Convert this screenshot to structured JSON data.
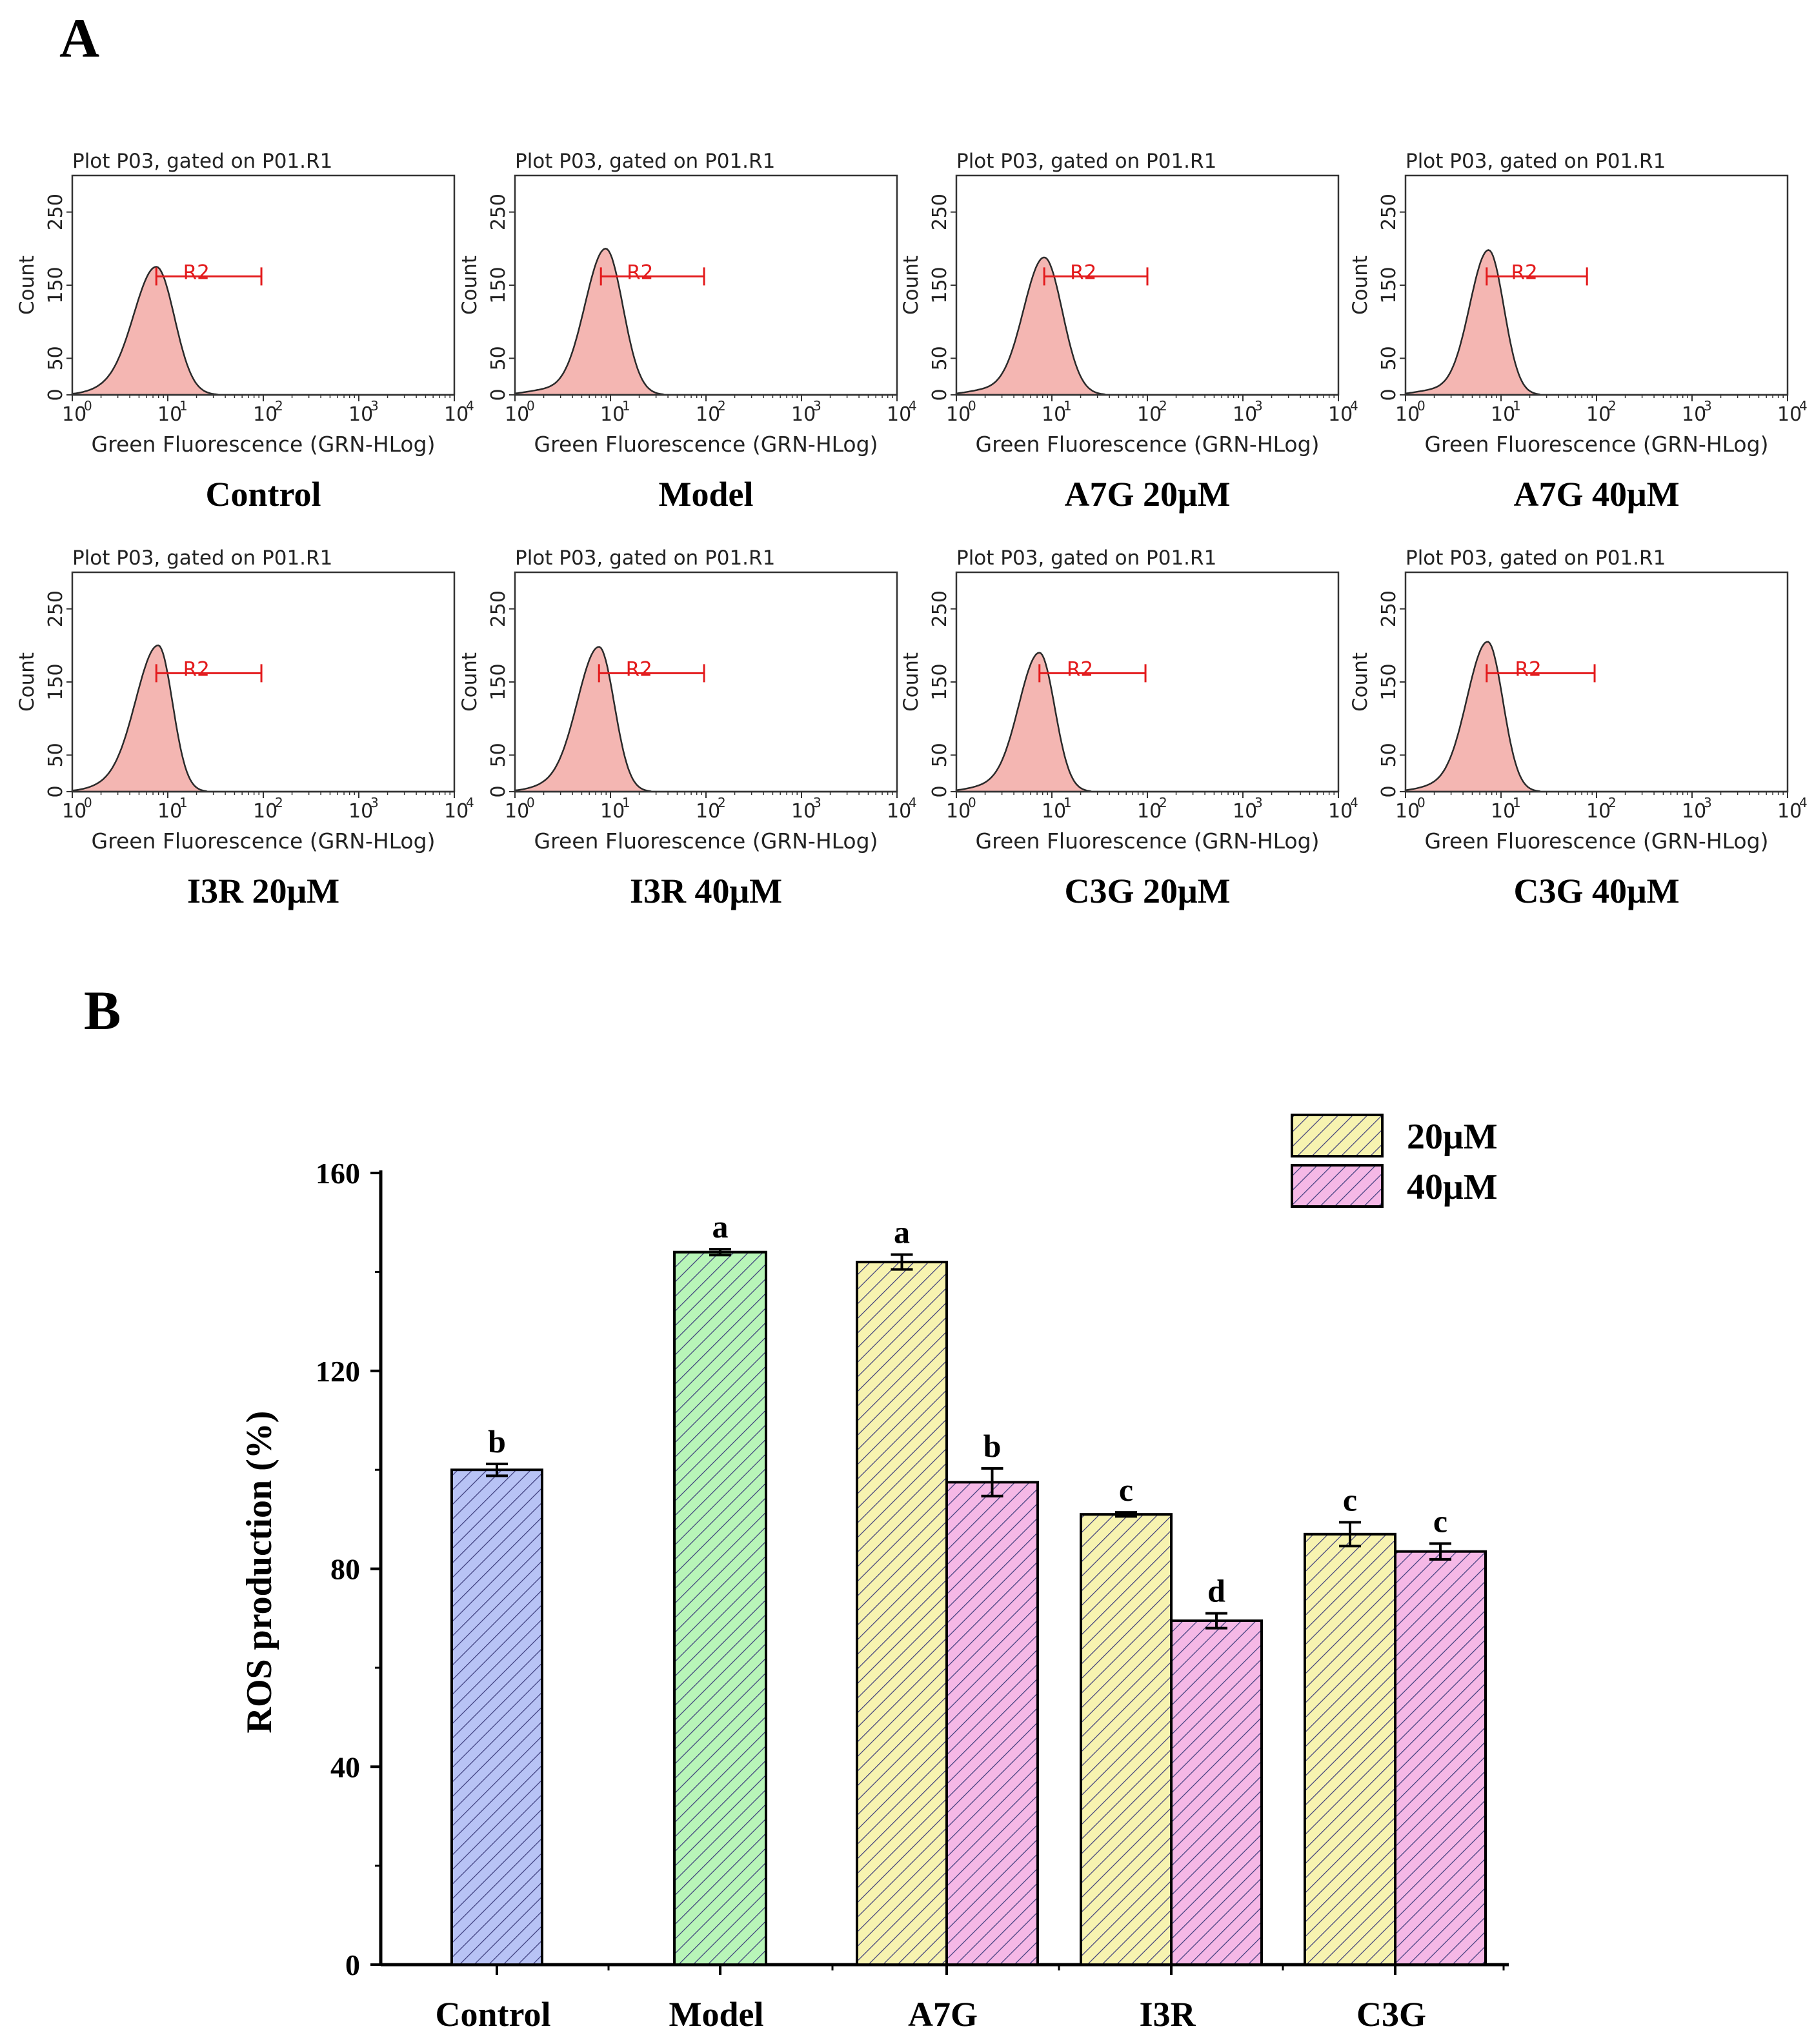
{
  "panels": {
    "a_label": "A",
    "b_label": "B"
  },
  "flow": {
    "plot_header": "Plot P03, gated on P01.R1",
    "x_axis_label": "Green Fluorescence (GRN-HLog)",
    "y_axis_label": "Count",
    "x_tick_labels": [
      "10",
      "10",
      "10",
      "10",
      "10"
    ],
    "x_tick_exponents": [
      "0",
      "1",
      "2",
      "3",
      "4"
    ],
    "y_tick_labels": [
      "0",
      "50",
      "150",
      "250"
    ],
    "gate_label": "R2",
    "colors": {
      "fill": "#f4b6b2",
      "edge": "#2a2a2a",
      "gate": "#e31a1c"
    }
  },
  "chart_data": [
    {
      "type": "histogram",
      "panel": "A",
      "x_scale": "log10",
      "xlim": [
        0,
        4
      ],
      "ylim": [
        0,
        300
      ],
      "x_ticks": [
        0,
        1,
        2,
        3,
        4
      ],
      "y_ticks": [
        0,
        50,
        150,
        250
      ],
      "histograms": [
        {
          "caption": "Control",
          "peak_log": 0.88,
          "peak_count": 175,
          "left_width": 0.24,
          "right_width": 0.19,
          "left_shoulder": 0.35,
          "gate": [
            0.88,
            1.98
          ]
        },
        {
          "caption": "Model",
          "peak_log": 0.95,
          "peak_count": 200,
          "left_width": 0.22,
          "right_width": 0.18,
          "left_shoulder": 0.3,
          "gate": [
            0.9,
            1.98
          ]
        },
        {
          "caption": "A7G 20μM",
          "peak_log": 0.92,
          "peak_count": 188,
          "left_width": 0.22,
          "right_width": 0.19,
          "left_shoulder": 0.3,
          "gate": [
            0.92,
            2.0
          ]
        },
        {
          "caption": "A7G  40μM",
          "peak_log": 0.87,
          "peak_count": 198,
          "left_width": 0.2,
          "right_width": 0.16,
          "left_shoulder": 0.3,
          "gate": [
            0.85,
            1.9
          ]
        },
        {
          "caption": "I3R 20μM",
          "peak_log": 0.9,
          "peak_count": 200,
          "left_width": 0.24,
          "right_width": 0.15,
          "left_shoulder": 0.35,
          "gate": [
            0.88,
            1.98
          ]
        },
        {
          "caption": "I3R 40μM",
          "peak_log": 0.88,
          "peak_count": 198,
          "left_width": 0.23,
          "right_width": 0.16,
          "left_shoulder": 0.33,
          "gate": [
            0.88,
            1.98
          ]
        },
        {
          "caption": "C3G 20μM",
          "peak_log": 0.87,
          "peak_count": 190,
          "left_width": 0.22,
          "right_width": 0.16,
          "left_shoulder": 0.3,
          "gate": [
            0.87,
            1.98
          ]
        },
        {
          "caption": "C3G 40μM",
          "peak_log": 0.86,
          "peak_count": 205,
          "left_width": 0.22,
          "right_width": 0.16,
          "left_shoulder": 0.3,
          "gate": [
            0.85,
            1.98
          ]
        }
      ]
    },
    {
      "type": "bar",
      "panel": "B",
      "title": "",
      "xlabel": "",
      "ylabel": "ROS production (%)",
      "ylim": [
        0,
        160
      ],
      "y_ticks": [
        0,
        40,
        80,
        120,
        160
      ],
      "groups": [
        "Control",
        "Model",
        "A7G",
        "I3R",
        "C3G"
      ],
      "legend": [
        {
          "name": "20μM",
          "color": "#f7f3b0"
        },
        {
          "name": "40μM",
          "color": "#f5b8e6"
        }
      ],
      "legend_position": "top-right",
      "bars": [
        {
          "group": "Control",
          "series": "single",
          "value": 100,
          "error": 1.2,
          "letter": "b",
          "color": "#b8c3f5"
        },
        {
          "group": "Model",
          "series": "single",
          "value": 144,
          "error": 0.6,
          "letter": "a",
          "color": "#b8f5b8"
        },
        {
          "group": "A7G",
          "series": "20μM",
          "value": 142,
          "error": 1.5,
          "letter": "a",
          "color": "#f7f3b0"
        },
        {
          "group": "A7G",
          "series": "40μM",
          "value": 97.5,
          "error": 2.8,
          "letter": "b",
          "color": "#f5b8e6"
        },
        {
          "group": "I3R",
          "series": "20μM",
          "value": 91,
          "error": 0.4,
          "letter": "c",
          "color": "#f7f3b0"
        },
        {
          "group": "I3R",
          "series": "40μM",
          "value": 69.5,
          "error": 1.5,
          "letter": "d",
          "color": "#f5b8e6"
        },
        {
          "group": "C3G",
          "series": "20μM",
          "value": 87,
          "error": 2.4,
          "letter": "c",
          "color": "#f7f3b0"
        },
        {
          "group": "C3G",
          "series": "40μM",
          "value": 83.5,
          "error": 1.6,
          "letter": "c",
          "color": "#f5b8e6"
        }
      ]
    }
  ]
}
